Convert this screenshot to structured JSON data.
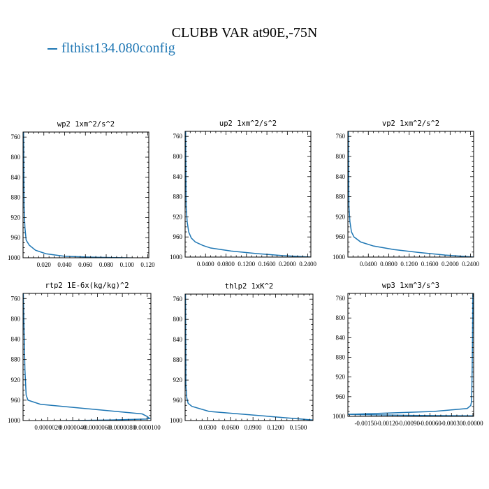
{
  "title": "CLUBB VAR at90E,-75N",
  "legend": {
    "label": "flthist134.080config",
    "color": "#1f77b4"
  },
  "chart_data": [
    {
      "type": "line",
      "title": "wp2  1xm^2/s^2",
      "xlim": [
        0.0,
        0.121
      ],
      "ylim": [
        1000,
        750
      ],
      "y_inverted": true,
      "xticks": [
        0.02,
        0.04,
        0.06,
        0.08,
        0.1,
        0.12
      ],
      "xtick_labels": [
        "0.020",
        "0.040",
        "0.060",
        "0.080",
        "0.100",
        "0.120"
      ],
      "yticks": [
        760,
        800,
        840,
        880,
        920,
        960,
        1000
      ],
      "ytick_labels": [
        "760",
        "800",
        "840",
        "880",
        "920",
        "960",
        "1000"
      ],
      "series": [
        {
          "color": "#1f77b4",
          "x": [
            0.0005,
            0.001,
            0.0018,
            0.003,
            0.006,
            0.012,
            0.022,
            0.04,
            0.07,
            0.1,
            0.121
          ],
          "y": [
            750,
            900,
            940,
            965,
            975,
            985,
            992,
            997,
            999,
            1000,
            1001
          ]
        }
      ]
    },
    {
      "type": "line",
      "title": "up2  1xm^2/s^2",
      "xlim": [
        0.0,
        0.246
      ],
      "ylim": [
        1000,
        750
      ],
      "y_inverted": true,
      "xticks": [
        0.04,
        0.08,
        0.12,
        0.16,
        0.2,
        0.24
      ],
      "xtick_labels": [
        "0.0400",
        "0.0800",
        "0.1200",
        "0.1600",
        "0.2000",
        "0.2400"
      ],
      "yticks": [
        760,
        800,
        840,
        880,
        920,
        960,
        1000
      ],
      "ytick_labels": [
        "760",
        "800",
        "840",
        "880",
        "920",
        "960",
        "1000"
      ],
      "series": [
        {
          "color": "#1f77b4",
          "x": [
            0.001,
            0.002,
            0.004,
            0.007,
            0.012,
            0.02,
            0.035,
            0.05,
            0.09,
            0.14,
            0.19,
            0.246
          ],
          "y": [
            750,
            900,
            930,
            950,
            962,
            970,
            977,
            982,
            988,
            993,
            997,
            1000
          ]
        }
      ]
    },
    {
      "type": "line",
      "title": "vp2  1xm^2/s^2",
      "xlim": [
        0.0,
        0.246
      ],
      "ylim": [
        1000,
        750
      ],
      "y_inverted": true,
      "xticks": [
        0.04,
        0.08,
        0.12,
        0.16,
        0.2,
        0.24
      ],
      "xtick_labels": [
        "0.0400",
        "0.0800",
        "0.1200",
        "0.1600",
        "0.2000",
        "0.2400"
      ],
      "yticks": [
        760,
        800,
        840,
        880,
        920,
        960,
        1000
      ],
      "ytick_labels": [
        "760",
        "800",
        "840",
        "880",
        "920",
        "960",
        "1000"
      ],
      "series": [
        {
          "color": "#1f77b4",
          "x": [
            0.001,
            0.002,
            0.004,
            0.007,
            0.012,
            0.025,
            0.05,
            0.09,
            0.14,
            0.19,
            0.246
          ],
          "y": [
            750,
            900,
            930,
            950,
            960,
            970,
            978,
            985,
            991,
            996,
            1000
          ]
        }
      ]
    },
    {
      "type": "line",
      "title": "rtp2  1E-6x(kg/kg)^2",
      "xlim": [
        0.0,
        1.03e-05
      ],
      "ylim": [
        1000,
        750
      ],
      "y_inverted": true,
      "xticks": [
        2e-06,
        4e-06,
        6e-06,
        8e-06,
        1e-05
      ],
      "xtick_labels": [
        "0.0000020",
        "0.0000040",
        "0.0000060",
        "0.0000080",
        "0.0000100"
      ],
      "yticks": [
        760,
        800,
        840,
        880,
        920,
        960,
        1000
      ],
      "ytick_labels": [
        "760",
        "800",
        "840",
        "880",
        "920",
        "960",
        "1000"
      ],
      "series": [
        {
          "color": "#1f77b4",
          "x": [
            2e-08,
            1.5e-07,
            2.5e-07,
            4e-07,
            1.4e-06,
            9.6e-06,
            1e-05,
            1.02e-05,
            9.9e-06,
            8.5e-06,
            7e-06,
            4e-06,
            3e-07
          ],
          "y": [
            750,
            900,
            950,
            960,
            968,
            987,
            992,
            996,
            997,
            998,
            999,
            1000,
            1001
          ]
        }
      ]
    },
    {
      "type": "line",
      "title": "thlp2  1xK^2",
      "xlim": [
        0.0,
        0.1695
      ],
      "ylim": [
        1000,
        750
      ],
      "y_inverted": true,
      "xticks": [
        0.03,
        0.06,
        0.09,
        0.12,
        0.15
      ],
      "xtick_labels": [
        "0.0300",
        "0.0600",
        "0.0900",
        "0.1200",
        "0.1500"
      ],
      "yticks": [
        760,
        800,
        840,
        880,
        920,
        960,
        1000
      ],
      "ytick_labels": [
        "760",
        "800",
        "840",
        "880",
        "920",
        "960",
        "1000"
      ],
      "series": [
        {
          "color": "#1f77b4",
          "x": [
            0.0005,
            0.001,
            0.0022,
            0.004,
            0.009,
            0.032,
            0.1695
          ],
          "y": [
            750,
            930,
            955,
            966,
            972,
            982,
            999
          ]
        }
      ]
    },
    {
      "type": "line",
      "title": "wp3  1xm^3/s^3",
      "xlim": [
        -0.00175,
        1e-05
      ],
      "ylim": [
        1000,
        750
      ],
      "y_inverted": true,
      "xticks": [
        -0.0015,
        -0.0012,
        -0.0009,
        -0.0006,
        -0.0003,
        0.0
      ],
      "xtick_labels": [
        "-0.00150",
        "-0.00120",
        "-0.00090",
        "-0.00060",
        "-0.00030",
        "0.00000"
      ],
      "yticks": [
        760,
        800,
        840,
        880,
        920,
        960,
        1000
      ],
      "ytick_labels": [
        "760",
        "800",
        "840",
        "880",
        "920",
        "960",
        "1000"
      ],
      "series": [
        {
          "color": "#1f77b4",
          "x": [
            -1e-06,
            -3e-06,
            -6e-06,
            -1e-05,
            -1.6e-05,
            -2e-05,
            -3e-05,
            -8e-05,
            -0.00055,
            -0.00175,
            -0.0009,
            0.0
          ],
          "y": [
            750,
            800,
            850,
            900,
            950,
            970,
            978,
            984,
            990,
            996,
            998,
            999
          ]
        }
      ]
    }
  ]
}
